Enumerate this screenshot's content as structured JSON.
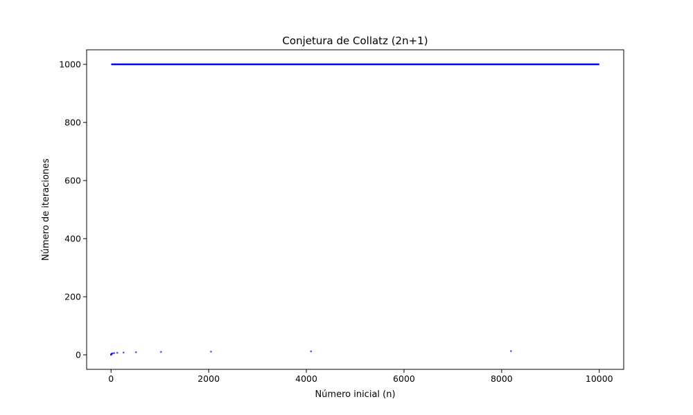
{
  "chart_data": {
    "type": "scatter",
    "title": "Conjetura de Collatz (2n+1)",
    "xlabel": "Número inicial (n)",
    "ylabel": "Número de iteraciones",
    "xlim": [
      -500,
      10500
    ],
    "ylim": [
      -50,
      1050
    ],
    "xticks": [
      0,
      2000,
      4000,
      6000,
      8000,
      10000
    ],
    "yticks": [
      0,
      200,
      400,
      600,
      800,
      1000
    ],
    "grid": false,
    "legend": "none",
    "point_color": "#0000ff",
    "series": [
      {
        "values_note": "",
        "x": [
          1,
          2,
          4,
          8,
          16,
          32,
          64,
          128,
          256,
          512,
          1024,
          2048,
          4096,
          8192
        ],
        "y": [
          0,
          1,
          2,
          3,
          4,
          5,
          6,
          7,
          8,
          9,
          10,
          11,
          12,
          13
        ]
      }
    ],
    "plateau": {
      "x_start": 3,
      "x_end": 10000,
      "y": 1000
    }
  }
}
